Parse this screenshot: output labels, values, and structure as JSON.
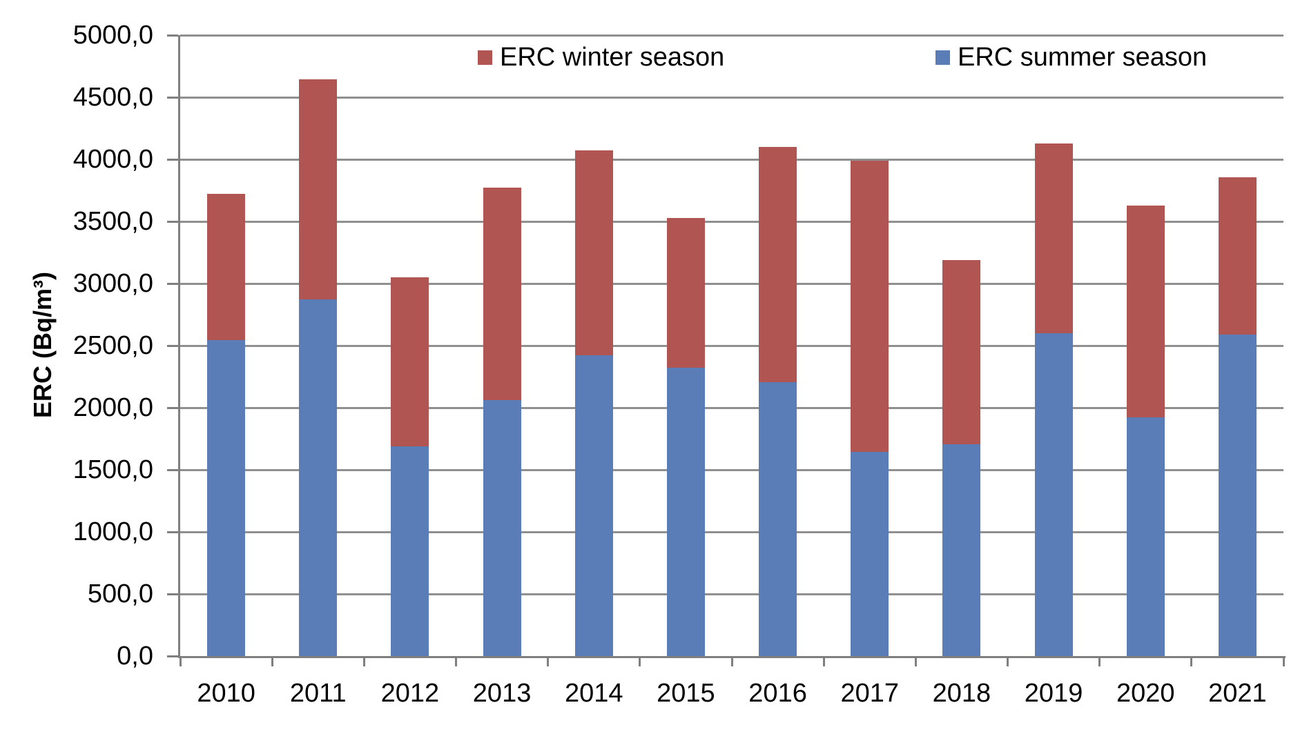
{
  "chart_data": {
    "type": "bar",
    "stacked": true,
    "title": "",
    "xlabel": "",
    "ylabel": "ERC (Bq/m³)",
    "ylim": [
      0,
      5000
    ],
    "ytick_step": 500,
    "ytick_labels": [
      "0,0",
      "500,0",
      "1000,0",
      "1500,0",
      "2000,0",
      "2500,0",
      "3000,0",
      "3500,0",
      "4000,0",
      "4500,0",
      "5000,0"
    ],
    "grid": true,
    "legend_position": "top",
    "categories": [
      "2010",
      "2011",
      "2012",
      "2013",
      "2014",
      "2015",
      "2016",
      "2017",
      "2018",
      "2019",
      "2020",
      "2021"
    ],
    "series": [
      {
        "name": "ERC summer season",
        "color": "#5A7DB8",
        "values": [
          2545,
          2870,
          1690,
          2060,
          2420,
          2320,
          2205,
          1645,
          1705,
          2600,
          1925,
          2590
        ]
      },
      {
        "name": "ERC winter season",
        "color": "#B05551",
        "values": [
          1175,
          1775,
          1360,
          1710,
          1650,
          1210,
          1895,
          2345,
          1485,
          1530,
          1705,
          1265
        ]
      }
    ],
    "legend": [
      {
        "label": "ERC winter season",
        "color": "#B05551"
      },
      {
        "label": "ERC summer season",
        "color": "#5A7DB8"
      }
    ],
    "colors": {
      "gridline": "#8f8f8f",
      "axis": "#7f7f7f",
      "background": "#ffffff",
      "text": "#000000"
    }
  }
}
